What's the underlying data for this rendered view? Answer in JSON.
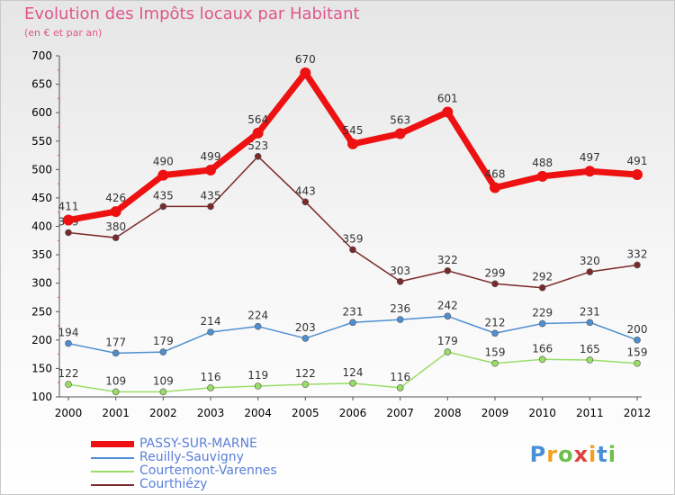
{
  "title": "Evolution des Impôts locaux par Habitant",
  "subtitle": "(en € et par an)",
  "brand": {
    "letters": [
      {
        "char": "P",
        "color": "#4a8fd4"
      },
      {
        "char": "r",
        "color": "#f0a020"
      },
      {
        "char": "o",
        "color": "#6cc04a"
      },
      {
        "char": "x",
        "color": "#e04040"
      },
      {
        "char": "i",
        "color": "#f0a020"
      },
      {
        "char": "t",
        "color": "#4a8fd4"
      },
      {
        "char": "i",
        "color": "#6cc04a"
      }
    ]
  },
  "chart_data": {
    "type": "line",
    "title": "Evolution des Impôts locaux par Habitant",
    "subtitle": "(en € et par an)",
    "xlabel": "",
    "ylabel": "",
    "x": [
      "2000",
      "2001",
      "2002",
      "2003",
      "2004",
      "2005",
      "2006",
      "2007",
      "2008",
      "2009",
      "2010",
      "2011",
      "2012"
    ],
    "ylim": [
      100,
      700
    ],
    "yticks": [
      "100",
      "150",
      "200",
      "250",
      "300",
      "350",
      "400",
      "450",
      "500",
      "550",
      "600",
      "650",
      "700"
    ],
    "grid": false,
    "legend_placement": "bottom-left",
    "series": [
      {
        "name": "PASSY-SUR-MARNE",
        "color": "#ee1111",
        "values": [
          411,
          426,
          490,
          499,
          564,
          670,
          545,
          563,
          601,
          468,
          488,
          497,
          491
        ]
      },
      {
        "name": "Reuilly-Sauvigny",
        "color": "#4f8fcf",
        "values": [
          194,
          177,
          179,
          214,
          224,
          203,
          231,
          236,
          242,
          212,
          229,
          231,
          200
        ]
      },
      {
        "name": "Courtemont-Varennes",
        "color": "#99dd66",
        "values": [
          122,
          109,
          109,
          116,
          119,
          122,
          124,
          116,
          179,
          159,
          166,
          165,
          159
        ]
      },
      {
        "name": "Courthiézy",
        "color": "#7a2a2a",
        "values": [
          389,
          380,
          435,
          435,
          523,
          443,
          359,
          303,
          322,
          299,
          292,
          320,
          332
        ]
      }
    ]
  }
}
